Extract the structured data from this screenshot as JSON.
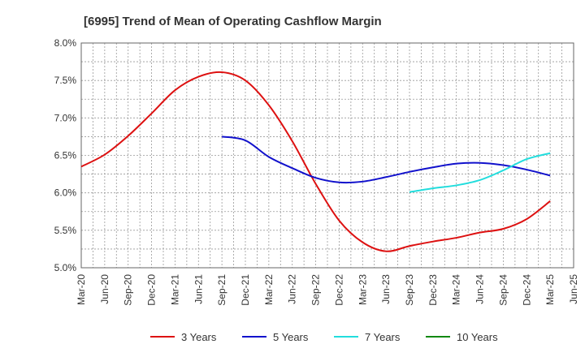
{
  "chart_data": {
    "type": "line",
    "title": "[6995]  Trend of Mean of Operating Cashflow Margin",
    "xlabel": "",
    "ylabel": "",
    "ylim": [
      5.0,
      8.0
    ],
    "y_ticks": [
      "5.0%",
      "5.5%",
      "6.0%",
      "6.5%",
      "7.0%",
      "7.5%",
      "8.0%"
    ],
    "x_ticks": [
      "Mar-20",
      "Jun-20",
      "Sep-20",
      "Dec-20",
      "Mar-21",
      "Jun-21",
      "Sep-21",
      "Dec-21",
      "Mar-22",
      "Jun-22",
      "Sep-22",
      "Dec-22",
      "Mar-23",
      "Jun-23",
      "Sep-23",
      "Dec-23",
      "Mar-24",
      "Jun-24",
      "Sep-24",
      "Dec-24",
      "Mar-25",
      "Jun-25"
    ],
    "grid": true,
    "legend_position": "bottom",
    "series": [
      {
        "name": "3 Years",
        "color": "#dd1111",
        "x": [
          "Mar-20",
          "Jun-20",
          "Sep-20",
          "Dec-20",
          "Mar-21",
          "Jun-21",
          "Sep-21",
          "Dec-21",
          "Mar-22",
          "Jun-22",
          "Sep-22",
          "Dec-22",
          "Mar-23",
          "Jun-23",
          "Sep-23",
          "Dec-23",
          "Mar-24",
          "Jun-24",
          "Sep-24",
          "Dec-24",
          "Mar-25"
        ],
        "values": [
          6.35,
          6.51,
          6.76,
          7.06,
          7.37,
          7.55,
          7.61,
          7.5,
          7.17,
          6.69,
          6.12,
          5.63,
          5.34,
          5.22,
          5.29,
          5.35,
          5.4,
          5.47,
          5.52,
          5.65,
          5.89
        ]
      },
      {
        "name": "5 Years",
        "color": "#1111cc",
        "x": [
          "Sep-21",
          "Dec-21",
          "Mar-22",
          "Jun-22",
          "Sep-22",
          "Dec-22",
          "Mar-23",
          "Jun-23",
          "Sep-23",
          "Dec-23",
          "Mar-24",
          "Jun-24",
          "Sep-24",
          "Dec-24",
          "Mar-25"
        ],
        "values": [
          6.75,
          6.7,
          6.48,
          6.33,
          6.2,
          6.14,
          6.15,
          6.21,
          6.28,
          6.34,
          6.39,
          6.4,
          6.37,
          6.31,
          6.23
        ]
      },
      {
        "name": "7 Years",
        "color": "#22dddd",
        "x": [
          "Sep-23",
          "Dec-23",
          "Mar-24",
          "Jun-24",
          "Sep-24",
          "Dec-24",
          "Mar-25"
        ],
        "values": [
          6.01,
          6.06,
          6.1,
          6.17,
          6.3,
          6.45,
          6.53
        ]
      },
      {
        "name": "10 Years",
        "color": "#118811",
        "x": [],
        "values": []
      }
    ]
  }
}
